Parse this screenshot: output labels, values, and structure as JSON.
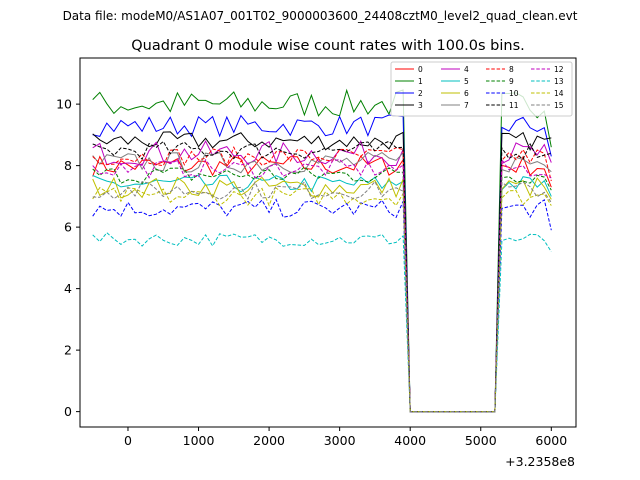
{
  "chart_data": {
    "type": "line",
    "suptitle": "Data file: modeM0/AS1A07_001T02_9000003600_24408cztM0_level2_quad_clean.evt",
    "title": "Quadrant 0 module wise count rates with 100.0s bins.",
    "xlabel": "",
    "ylabel": "",
    "x_offset_label": "+3.2358e8",
    "xlim": [
      -680,
      6350
    ],
    "ylim": [
      -0.5,
      11.5
    ],
    "x_ticks": [
      0,
      1000,
      2000,
      3000,
      4000,
      5000,
      6000
    ],
    "y_ticks": [
      0,
      2,
      4,
      6,
      8,
      10
    ],
    "x_tick_labels": [
      "0",
      "1000",
      "2000",
      "3000",
      "4000",
      "5000",
      "6000"
    ],
    "y_tick_labels": [
      "0",
      "2",
      "4",
      "6",
      "8",
      "10"
    ],
    "legend_position": "top-right",
    "gap_start": 4000,
    "gap_end": 5300,
    "series": [
      {
        "name": "0",
        "color": "#ff0000",
        "dash": false,
        "mean": 8.0,
        "noise": 0.35,
        "last": 7.3
      },
      {
        "name": "1",
        "color": "#008000",
        "dash": false,
        "mean": 10.0,
        "noise": 0.45,
        "last": 8.6
      },
      {
        "name": "2",
        "color": "#0000ff",
        "dash": false,
        "mean": 9.3,
        "noise": 0.35,
        "last": 8.3
      },
      {
        "name": "3",
        "color": "#000000",
        "dash": false,
        "mean": 8.8,
        "noise": 0.3,
        "last": 8.9
      },
      {
        "name": "4",
        "color": "#bf00bf",
        "dash": false,
        "mean": 8.4,
        "noise": 0.4,
        "last": 8.1
      },
      {
        "name": "5",
        "color": "#00bfbf",
        "dash": false,
        "mean": 7.4,
        "noise": 0.3,
        "last": 7.0
      },
      {
        "name": "6",
        "color": "#bfbf00",
        "dash": false,
        "mean": 7.3,
        "noise": 0.35,
        "last": 6.9
      },
      {
        "name": "7",
        "color": "#808080",
        "dash": false,
        "mean": 8.1,
        "noise": 0.35,
        "last": 7.8
      },
      {
        "name": "8",
        "color": "#ff0000",
        "dash": true,
        "mean": 8.3,
        "noise": 0.3,
        "last": 7.5
      },
      {
        "name": "9",
        "color": "#008000",
        "dash": true,
        "mean": 7.7,
        "noise": 0.3,
        "last": 7.2
      },
      {
        "name": "10",
        "color": "#0000ff",
        "dash": true,
        "mean": 6.6,
        "noise": 0.3,
        "last": 5.9
      },
      {
        "name": "11",
        "color": "#000000",
        "dash": true,
        "mean": 8.5,
        "noise": 0.3,
        "last": 8.4
      },
      {
        "name": "12",
        "color": "#bf00bf",
        "dash": true,
        "mean": 7.9,
        "noise": 0.3,
        "last": 7.6
      },
      {
        "name": "13",
        "color": "#00bfbf",
        "dash": true,
        "mean": 5.6,
        "noise": 0.22,
        "last": 5.2
      },
      {
        "name": "14",
        "color": "#bfbf00",
        "dash": true,
        "mean": 7.0,
        "noise": 0.3,
        "last": 6.7
      },
      {
        "name": "15",
        "color": "#808080",
        "dash": true,
        "mean": 7.2,
        "noise": 0.3,
        "last": 6.8
      }
    ]
  }
}
